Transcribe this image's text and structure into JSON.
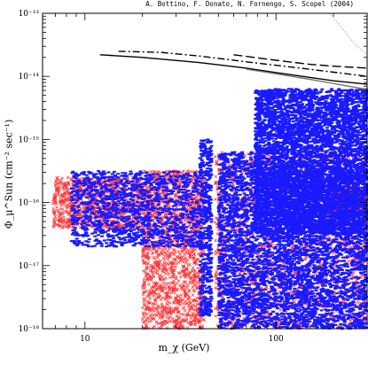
{
  "credit": "A. Bottino, F. Donato, N. Fornengo, S. Scopel (2004)",
  "chart_data": {
    "type": "scatter",
    "xlabel": "m_χ  (GeV)",
    "ylabel": "Φ_μ^Sun  (cm⁻² sec⁻¹)",
    "xscale": "log",
    "yscale": "log",
    "xlim": [
      6,
      300
    ],
    "ylim": [
      1e-18,
      1e-13
    ],
    "x_tick_labels": [
      {
        "v": 10,
        "label": "10"
      },
      {
        "v": 100,
        "label": "100"
      }
    ],
    "y_tick_labels": [
      {
        "v": 1e-13,
        "label": "10⁻¹³"
      },
      {
        "v": 1e-14,
        "label": "10⁻¹⁴"
      },
      {
        "v": 1e-15,
        "label": "10⁻¹⁵"
      },
      {
        "v": 1e-16,
        "label": "10⁻¹⁶"
      },
      {
        "v": 1e-17,
        "label": "10⁻¹⁷"
      },
      {
        "v": 1e-18,
        "label": "10⁻¹⁸"
      }
    ],
    "marker_colors": {
      "crosses": "#ff3333",
      "dots": "#1a1aff"
    },
    "limit_curves": [
      {
        "style": "solid",
        "color": "#000000",
        "points": [
          [
            12,
            2.2e-14
          ],
          [
            20,
            2e-14
          ],
          [
            40,
            1.65e-14
          ],
          [
            70,
            1.35e-14
          ],
          [
            100,
            1.15e-14
          ],
          [
            200,
            8.5e-15
          ],
          [
            300,
            7.5e-15
          ]
        ]
      },
      {
        "style": "solid",
        "color": "#777777",
        "points": [
          [
            70,
            1.3e-14
          ],
          [
            100,
            1.1e-14
          ],
          [
            150,
            9e-15
          ],
          [
            300,
            6.2e-15
          ]
        ]
      },
      {
        "style": "dashdot",
        "color": "#000000",
        "points": [
          [
            15,
            2.5e-14
          ],
          [
            25,
            2.4e-14
          ],
          [
            40,
            2.1e-14
          ],
          [
            70,
            1.7e-14
          ],
          [
            100,
            1.5e-14
          ],
          [
            150,
            1.3e-14
          ],
          [
            300,
            1e-14
          ]
        ]
      },
      {
        "style": "longdash",
        "color": "#000000",
        "points": [
          [
            60,
            2.2e-14
          ],
          [
            100,
            1.8e-14
          ],
          [
            150,
            1.55e-14
          ],
          [
            200,
            1.45e-14
          ],
          [
            300,
            1.35e-14
          ]
        ]
      },
      {
        "style": "dotted",
        "color": "#888888",
        "points": [
          [
            190,
            1e-13
          ],
          [
            220,
            6e-14
          ],
          [
            260,
            3.2e-14
          ],
          [
            300,
            2.2e-14
          ]
        ]
      }
    ],
    "regions": [
      {
        "marker": "crosses",
        "xr": [
          6.8,
          20
        ],
        "yr": [
          -16.4,
          -15.6
        ],
        "n": 900
      },
      {
        "marker": "crosses",
        "xr": [
          20,
          42
        ],
        "yr": [
          -18,
          -15.5
        ],
        "n": 1600
      },
      {
        "marker": "crosses",
        "xr": [
          48,
          300
        ],
        "yr": [
          -18,
          -15.2
        ],
        "n": 1800
      },
      {
        "marker": "crosses",
        "xr": [
          200,
          300
        ],
        "yr": [
          -16.2,
          -15.8
        ],
        "n": 400
      },
      {
        "marker": "dots",
        "xr": [
          8.5,
          40
        ],
        "yr": [
          -16.7,
          -15.5
        ],
        "n": 1400
      },
      {
        "marker": "dots",
        "xr": [
          40,
          46
        ],
        "yr": [
          -17.8,
          -15.0
        ],
        "n": 500
      },
      {
        "marker": "dots",
        "xr": [
          50,
          85
        ],
        "yr": [
          -18,
          -15.2
        ],
        "n": 1600
      },
      {
        "marker": "dots",
        "xr": [
          85,
          300
        ],
        "yr": [
          -18,
          -15.5
        ],
        "n": 3200
      },
      {
        "marker": "dots",
        "xr": [
          78,
          300
        ],
        "yr": [
          -16.5,
          -14.2
        ],
        "n": 6000
      }
    ]
  }
}
